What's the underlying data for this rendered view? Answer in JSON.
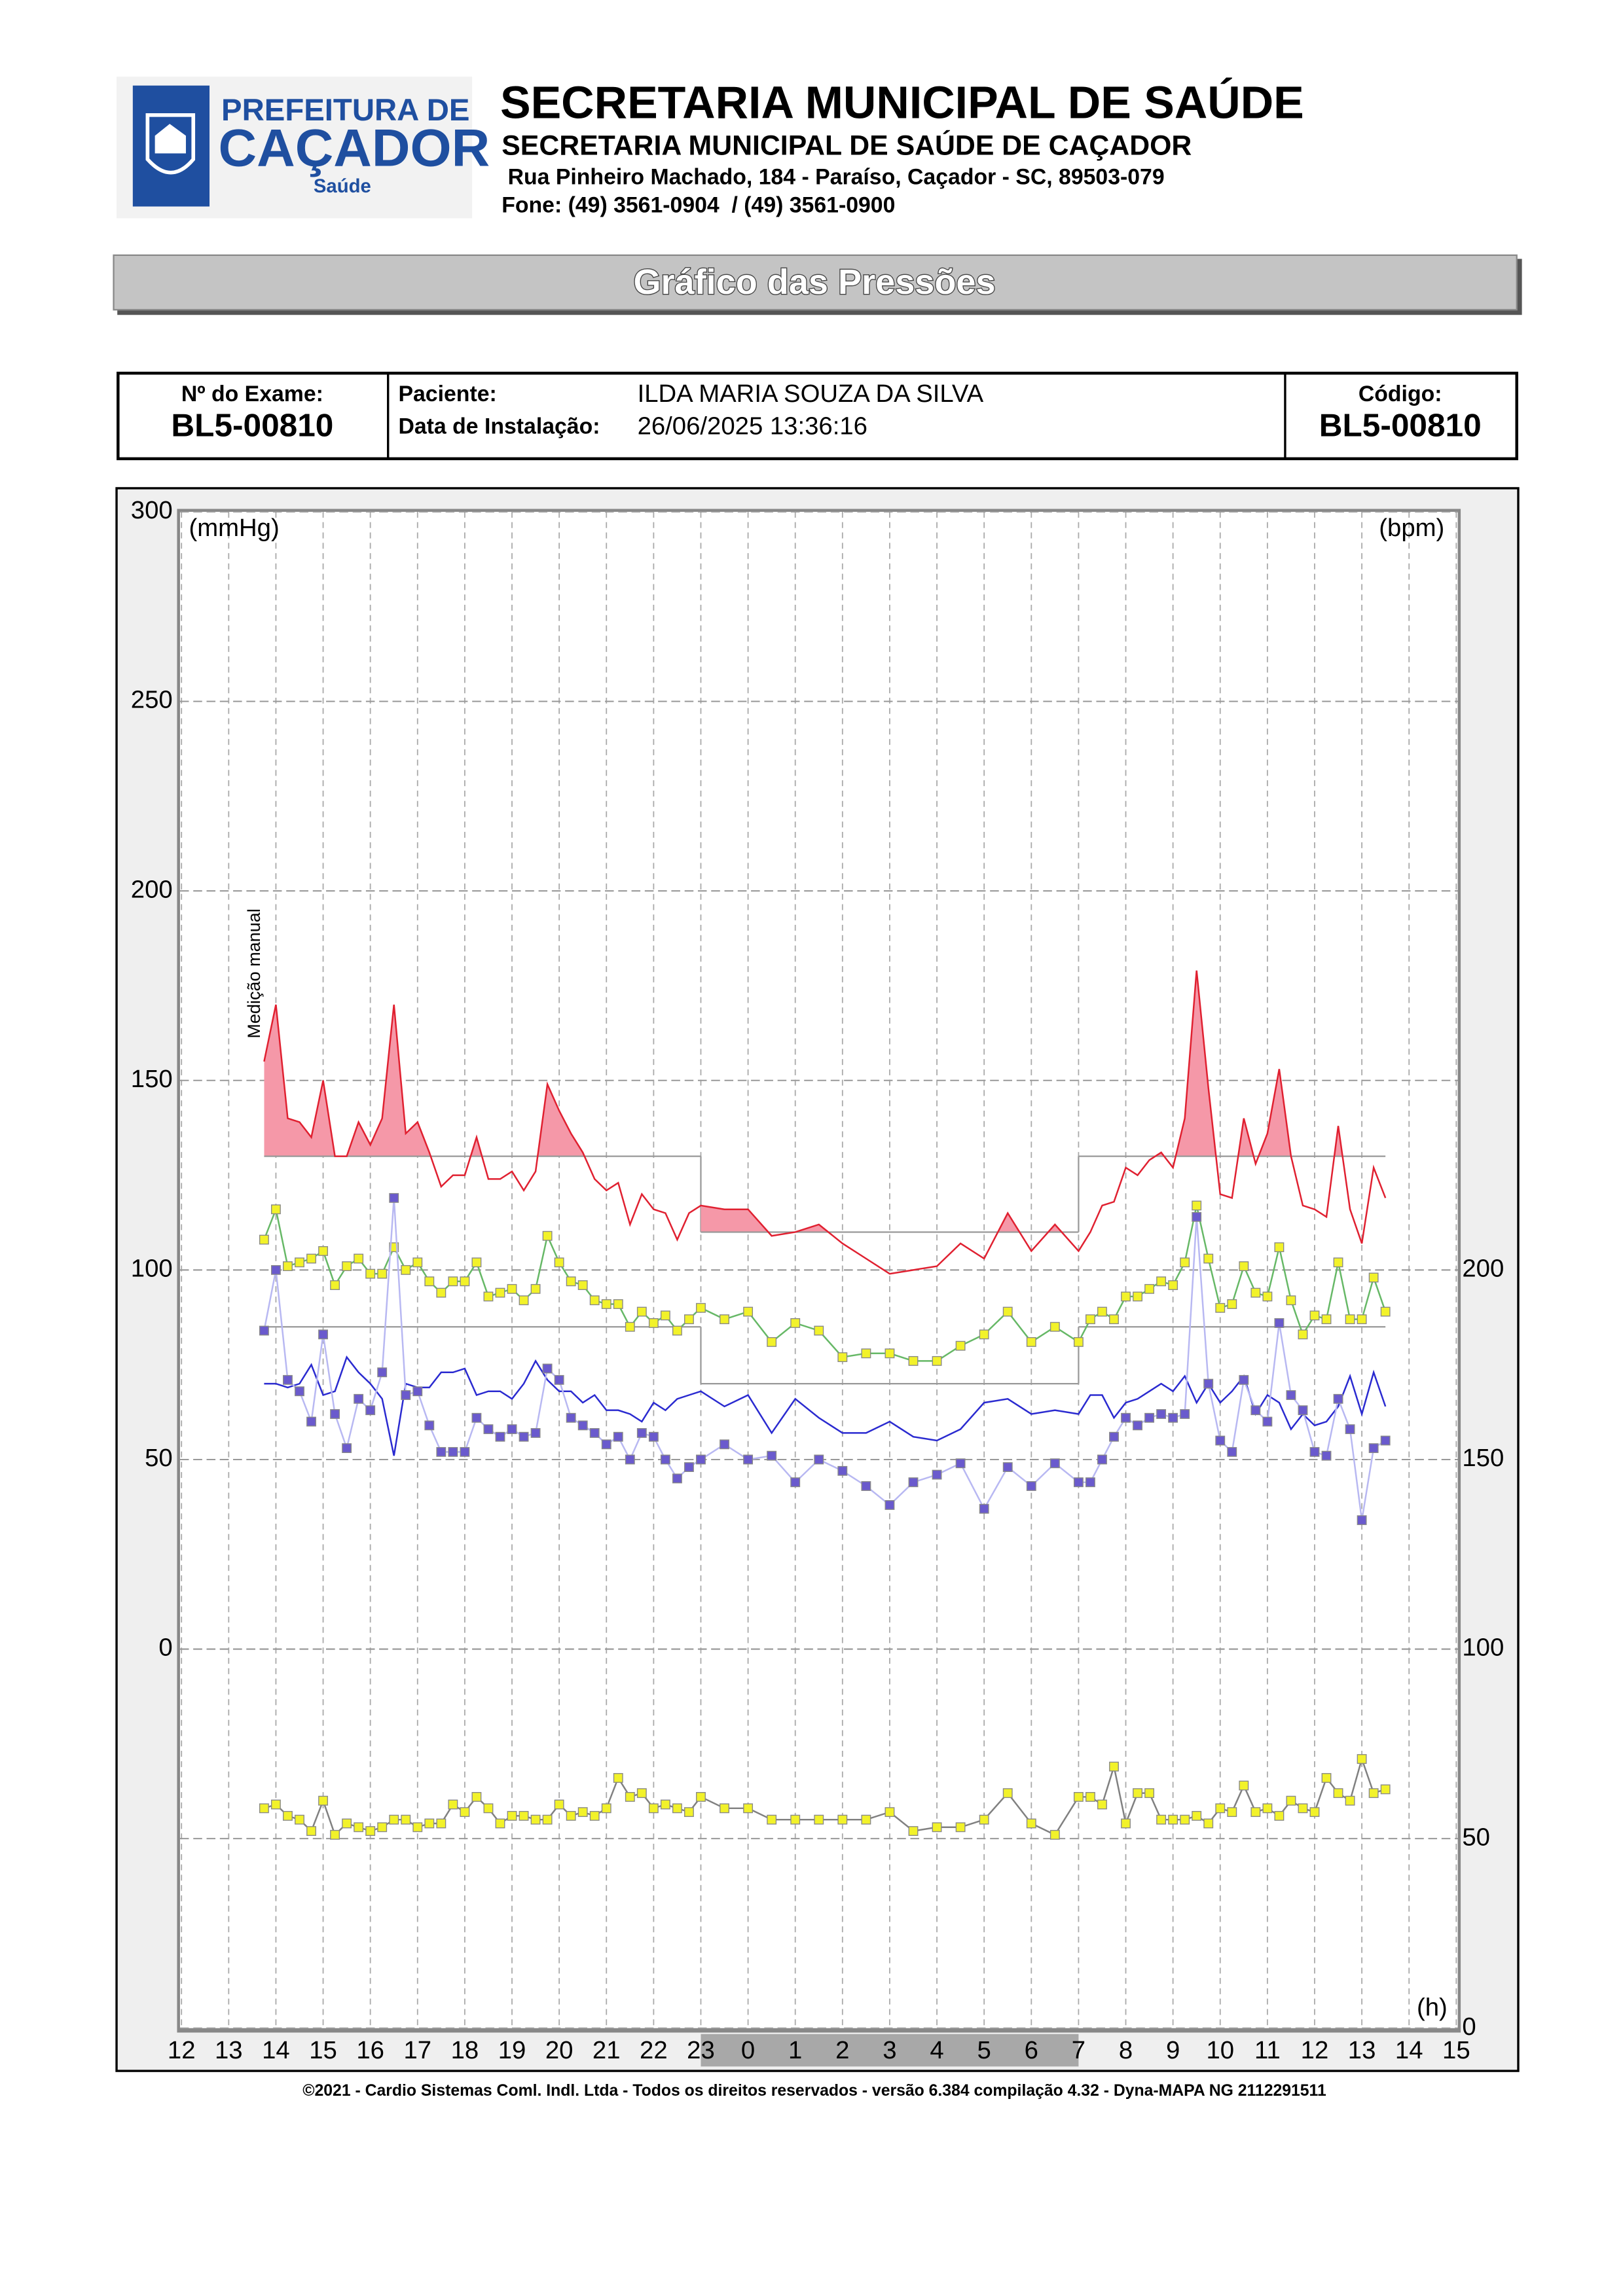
{
  "header": {
    "logo_lines": [
      "PREFEITURA DE",
      "CAÇADOR",
      "Saúde"
    ],
    "title": "SECRETARIA MUNICIPAL DE SAÚDE",
    "subtitle": "SECRETARIA MUNICIPAL DE SAÚDE DE CAÇADOR",
    "address": " Rua Pinheiro Machado, 184 - Paraíso, Caçador - SC, 89503-079",
    "phone": "Fone: (49) 3561-0904  / (49) 3561-0900"
  },
  "banner": "Gráfico das Pressões",
  "exam": {
    "exam_label": "Nº do Exame:",
    "exam_number": "BL5-00810",
    "patient_label": "Paciente:",
    "patient": "ILDA MARIA SOUZA DA SILVA",
    "date_label": "Data de Instalação:",
    "date": "26/06/2025 13:36:16",
    "code_label": "Código:",
    "code": "BL5-00810"
  },
  "chart_data": {
    "type": "line",
    "y_label": "(mmHg)",
    "y2_label": "(bpm)",
    "x_label": "(h)",
    "annotation": {
      "text": "Medição manual",
      "x": 13.75
    },
    "xlim": [
      12,
      39
    ],
    "xticks": [
      12,
      13,
      14,
      15,
      16,
      17,
      18,
      19,
      20,
      21,
      22,
      23,
      {
        "value": 24,
        "label": "0"
      },
      {
        "value": 25,
        "label": "1"
      },
      {
        "value": 26,
        "label": "2"
      },
      {
        "value": 27,
        "label": "3"
      },
      {
        "value": 28,
        "label": "4"
      },
      {
        "value": 29,
        "label": "5"
      },
      {
        "value": 30,
        "label": "6"
      },
      {
        "value": 31,
        "label": "7"
      },
      {
        "value": 32,
        "label": "8"
      },
      {
        "value": 33,
        "label": "9"
      },
      {
        "value": 34,
        "label": "10"
      },
      {
        "value": 35,
        "label": "11"
      },
      {
        "value": 36,
        "label": "12"
      },
      {
        "value": 37,
        "label": "13"
      },
      {
        "value": 38,
        "label": "14"
      },
      {
        "value": 39,
        "label": "15"
      }
    ],
    "ylim": [
      -100,
      300
    ],
    "yticks": [
      0,
      50,
      100,
      150,
      200,
      250,
      300
    ],
    "y2lim": [
      0,
      400
    ],
    "y2ticks": [
      0,
      50,
      100,
      150,
      200
    ],
    "grid": true,
    "night": [
      23,
      31
    ],
    "thresholds": [
      {
        "from": 13.75,
        "to": 23,
        "values": [
          130,
          85
        ]
      },
      {
        "from": 23,
        "to": 31,
        "values": [
          110,
          70
        ]
      },
      {
        "from": 31,
        "to": 37.5,
        "values": [
          130,
          85
        ]
      }
    ],
    "x": [
      13.75,
      14,
      14.25,
      14.5,
      14.75,
      15,
      15.25,
      15.5,
      15.75,
      16,
      16.25,
      16.5,
      16.75,
      17,
      17.25,
      17.5,
      17.75,
      18,
      18.25,
      18.5,
      18.75,
      19,
      19.25,
      19.5,
      19.75,
      20,
      20.25,
      20.5,
      20.75,
      21,
      21.25,
      21.5,
      21.75,
      22,
      22.25,
      22.5,
      22.75,
      23,
      23.5,
      24,
      24.5,
      25,
      25.5,
      26,
      26.5,
      27,
      27.5,
      28,
      28.5,
      29,
      29.5,
      30,
      30.5,
      31,
      31.25,
      31.5,
      31.75,
      32,
      32.25,
      32.5,
      32.75,
      33,
      33.25,
      33.5,
      33.75,
      34,
      34.25,
      34.5,
      34.75,
      35,
      35.25,
      35.5,
      35.75,
      36,
      36.25,
      36.5,
      36.75,
      37,
      37.25,
      37.5
    ],
    "series": [
      {
        "color": "#e02030",
        "fill_color": "#f598a8",
        "marker": "none",
        "values": [
          155,
          170,
          140,
          139,
          135,
          150,
          130,
          130,
          139,
          133,
          140,
          170,
          136,
          139,
          131,
          122,
          125,
          125,
          135,
          124,
          124,
          126,
          121,
          126,
          149,
          142,
          136,
          131,
          124,
          121,
          123,
          112,
          120,
          116,
          115,
          108,
          115,
          117,
          116,
          116,
          109,
          110,
          112,
          107,
          103,
          99,
          100,
          101,
          107,
          103,
          115,
          105,
          112,
          105,
          110,
          117,
          118,
          127,
          125,
          129,
          131,
          127,
          140,
          179,
          148,
          120,
          119,
          140,
          128,
          136,
          153,
          130,
          117,
          116,
          114,
          138,
          116,
          107,
          127,
          119
        ]
      },
      {
        "color": "#66b866",
        "marker": "square",
        "marker_color": "#f2f22a",
        "values": [
          108,
          116,
          101,
          102,
          103,
          105,
          96,
          101,
          103,
          99,
          99,
          106,
          100,
          102,
          97,
          94,
          97,
          97,
          102,
          93,
          94,
          95,
          92,
          95,
          109,
          102,
          97,
          96,
          92,
          91,
          91,
          85,
          89,
          86,
          88,
          84,
          87,
          90,
          87,
          89,
          81,
          86,
          84,
          77,
          78,
          78,
          76,
          76,
          80,
          83,
          89,
          81,
          85,
          81,
          87,
          89,
          87,
          93,
          93,
          95,
          97,
          96,
          102,
          117,
          103,
          90,
          91,
          101,
          94,
          93,
          106,
          92,
          83,
          88,
          87,
          102,
          87,
          87,
          98,
          89
        ]
      },
      {
        "color": "#2a2ad0",
        "marker": "none",
        "values": [
          70,
          70,
          69,
          70,
          75,
          67,
          68,
          77,
          73,
          70,
          66,
          51,
          70,
          69,
          69,
          73,
          73,
          74,
          67,
          68,
          68,
          66,
          70,
          76,
          71,
          68,
          68,
          65,
          67,
          63,
          63,
          62,
          60,
          65,
          63,
          66,
          67,
          68,
          64,
          67,
          57,
          66,
          61,
          57,
          57,
          60,
          56,
          55,
          58,
          65,
          66,
          62,
          63,
          62,
          67,
          67,
          61,
          65,
          66,
          68,
          70,
          68,
          72,
          65,
          70,
          65,
          68,
          72,
          62,
          67,
          65,
          58,
          62,
          59,
          60,
          64,
          72,
          62,
          73,
          64
        ]
      },
      {
        "color": "#b8b8f2",
        "marker": "square",
        "marker_color": "#6a5acd",
        "values": [
          84,
          100,
          71,
          68,
          60,
          83,
          62,
          53,
          66,
          63,
          73,
          119,
          67,
          68,
          59,
          52,
          52,
          52,
          61,
          58,
          56,
          58,
          56,
          57,
          74,
          71,
          61,
          59,
          57,
          54,
          56,
          50,
          57,
          56,
          50,
          45,
          48,
          50,
          54,
          50,
          51,
          44,
          50,
          47,
          43,
          38,
          44,
          46,
          49,
          37,
          48,
          43,
          49,
          44,
          44,
          50,
          56,
          61,
          59,
          61,
          62,
          61,
          62,
          114,
          70,
          55,
          52,
          71,
          63,
          60,
          86,
          67,
          63,
          52,
          51,
          66,
          58,
          34,
          53,
          55
        ]
      },
      {
        "color": "#808080",
        "marker": "square",
        "marker_color": "#f2f22a",
        "axis": "y2",
        "values": [
          58,
          59,
          56,
          55,
          52,
          60,
          51,
          54,
          53,
          52,
          53,
          55,
          55,
          53,
          54,
          54,
          59,
          57,
          61,
          58,
          54,
          56,
          56,
          55,
          55,
          59,
          56,
          57,
          56,
          58,
          66,
          61,
          62,
          58,
          59,
          58,
          57,
          61,
          58,
          58,
          55,
          55,
          55,
          55,
          55,
          57,
          52,
          53,
          53,
          55,
          62,
          54,
          51,
          61,
          61,
          59,
          69,
          54,
          62,
          62,
          55,
          55,
          55,
          56,
          54,
          58,
          57,
          64,
          57,
          58,
          56,
          60,
          58,
          57,
          66,
          62,
          60,
          71,
          62,
          63
        ]
      }
    ]
  },
  "footer": "©2021 - Cardio Sistemas Coml. Indl. Ltda - Todos os direitos reservados - versão 6.384 compilação 4.32 - Dyna-MAPA NG 2112291511"
}
